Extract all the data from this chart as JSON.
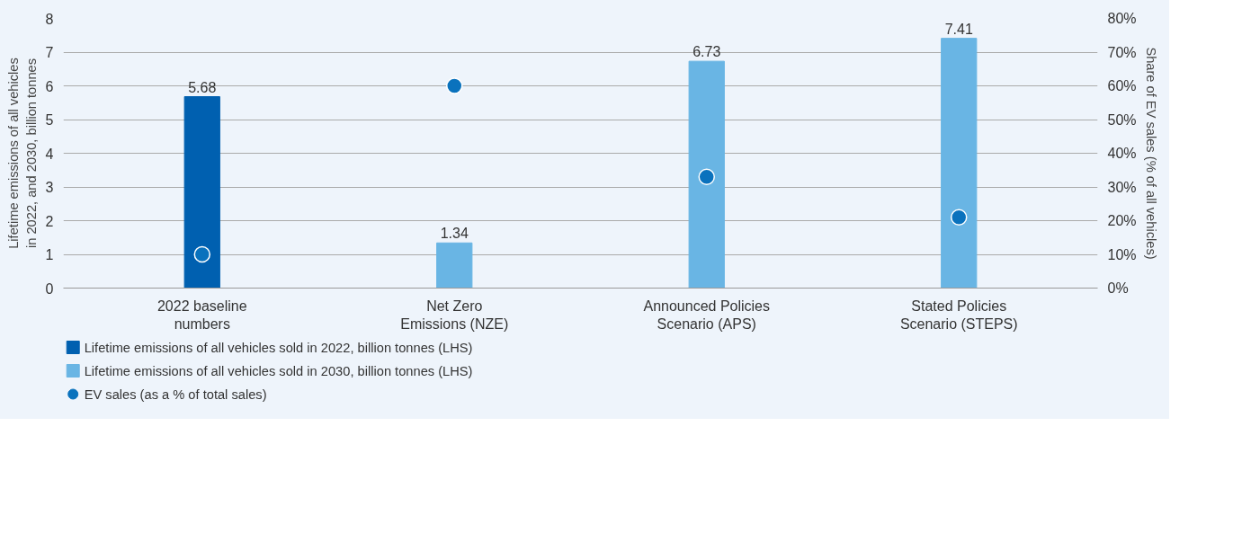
{
  "chart_data": {
    "type": "bar",
    "categories": [
      "2022 baseline numbers",
      "Net Zero Emissions (NZE)",
      "Announced Policies Scenario (APS)",
      "Stated Policies Scenario (STEPS)"
    ],
    "ylabel": "Lifetime emissions of all vehicles in 2022, and 2030, billion tonnes",
    "y2label": "Share of EV sales (% of all vehicles)",
    "ylim": [
      0,
      8
    ],
    "yticks": [
      0,
      1,
      2,
      3,
      4,
      5,
      6,
      7,
      8
    ],
    "y2lim": [
      0,
      80
    ],
    "y2ticks": [
      {
        "value": 0,
        "label": "0%"
      },
      {
        "value": 10,
        "label": "10%"
      },
      {
        "value": 20,
        "label": "20%"
      },
      {
        "value": 30,
        "label": "30%"
      },
      {
        "value": 40,
        "label": "40%"
      },
      {
        "value": 50,
        "label": "50%"
      },
      {
        "value": 60,
        "label": "60%"
      },
      {
        "value": 70,
        "label": "70%"
      },
      {
        "value": 80,
        "label": "80%"
      }
    ],
    "series": [
      {
        "name": "Lifetime emissions of all vehicles sold in 2022, billion tonnes (LHS)",
        "color": "#0060b0",
        "values": [
          5.68,
          null,
          null,
          null
        ],
        "value_labels": [
          "5.68",
          null,
          null,
          null
        ]
      },
      {
        "name": "Lifetime emissions of all vehicles sold in 2030, billion tonnes (LHS)",
        "color": "#69b5e4",
        "values": [
          null,
          1.34,
          6.73,
          7.41
        ],
        "value_labels": [
          null,
          "1.34",
          "6.73",
          "7.41"
        ]
      },
      {
        "name": "EV sales (as a % of total sales)",
        "type": "scatter",
        "axis": "y2",
        "color": "#0a72bd",
        "marker": "circle",
        "values": [
          10,
          60,
          33,
          21
        ]
      }
    ],
    "grid": "y",
    "legend": "bottom left"
  }
}
